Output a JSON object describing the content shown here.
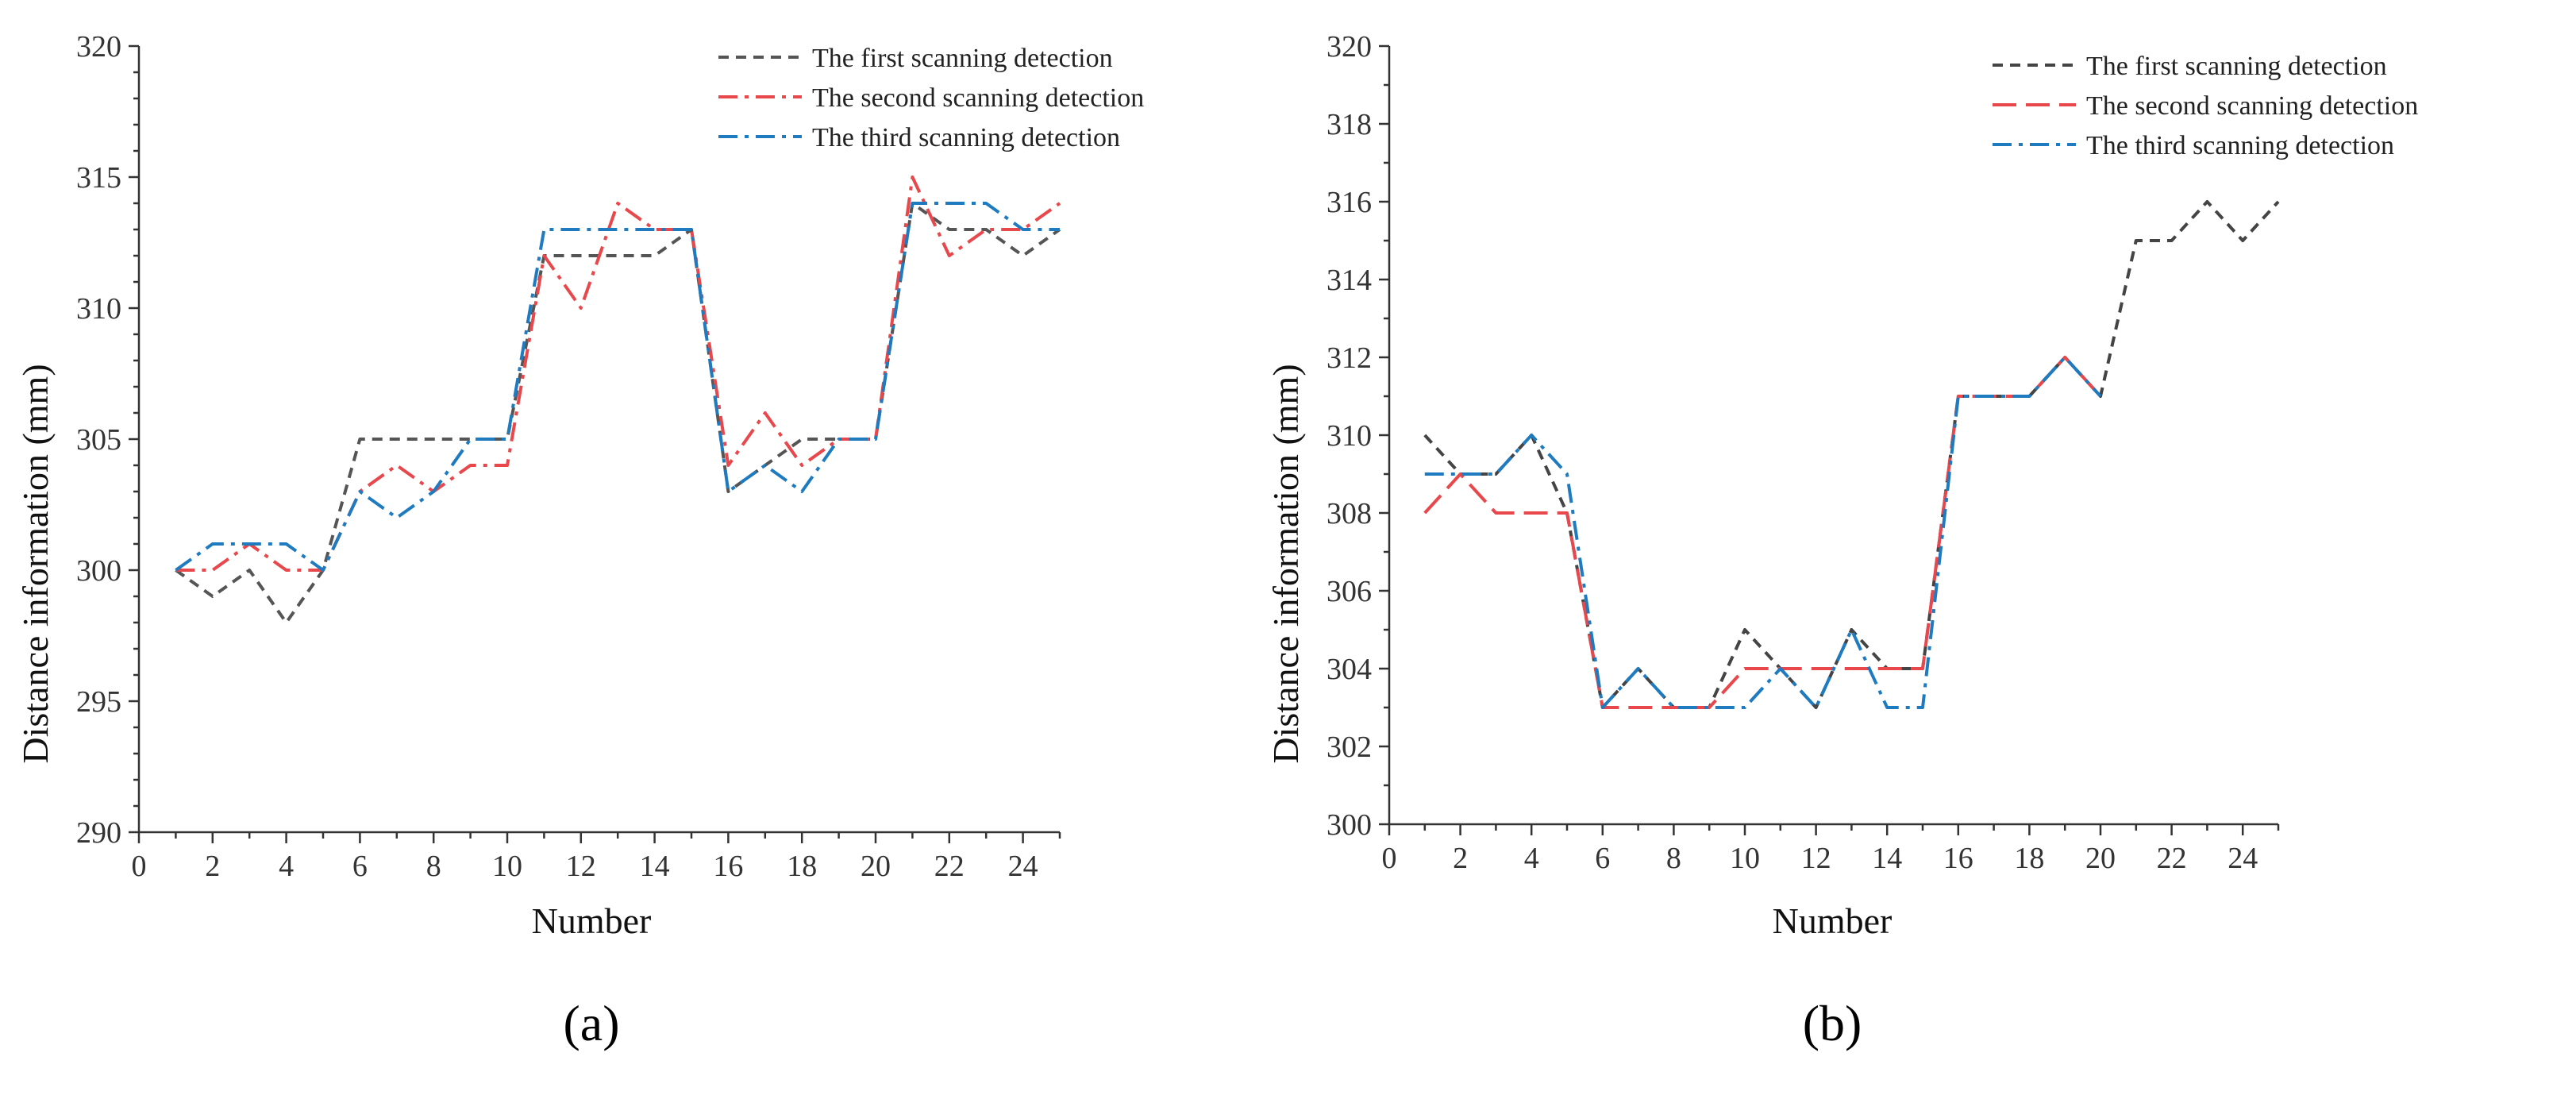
{
  "chart_data": [
    {
      "type": "line",
      "panel_label": "(a)",
      "xlabel": "Number",
      "ylabel": "Distance information (mm)",
      "xlim": [
        0,
        25
      ],
      "ylim": [
        290,
        320
      ],
      "x_ticks": [
        0,
        2,
        4,
        6,
        8,
        10,
        12,
        14,
        16,
        18,
        20,
        22,
        24
      ],
      "y_ticks": [
        290,
        295,
        300,
        305,
        310,
        315,
        320
      ],
      "y_minor_step": 1,
      "legend_position": "top-right",
      "x": [
        1,
        2,
        3,
        4,
        5,
        6,
        7,
        8,
        9,
        10,
        11,
        12,
        13,
        14,
        15,
        16,
        17,
        18,
        19,
        20,
        21,
        22,
        23,
        24,
        25
      ],
      "series": [
        {
          "name": "The first scanning detection",
          "color": "#555555",
          "dash": "dash",
          "values": [
            300,
            299,
            300,
            298,
            300,
            305,
            305,
            305,
            305,
            305,
            312,
            312,
            312,
            312,
            313,
            303,
            304,
            305,
            305,
            305,
            314,
            313,
            313,
            312,
            313
          ]
        },
        {
          "name": "The second scanning detection",
          "color": "#e8474c",
          "dash": "dashdot",
          "values": [
            300,
            300,
            301,
            300,
            300,
            303,
            304,
            303,
            304,
            304,
            312,
            310,
            314,
            313,
            313,
            304,
            306,
            304,
            305,
            305,
            315,
            312,
            313,
            313,
            314
          ]
        },
        {
          "name": "The third scanning detection",
          "color": "#1f7bbf",
          "dash": "dashdot",
          "values": [
            300,
            301,
            301,
            301,
            300,
            303,
            302,
            303,
            305,
            305,
            313,
            313,
            313,
            313,
            313,
            303,
            304,
            303,
            305,
            305,
            314,
            314,
            314,
            313,
            313
          ]
        }
      ]
    },
    {
      "type": "line",
      "panel_label": "(b)",
      "xlabel": "Number",
      "ylabel": "Distance information (mm)",
      "xlim": [
        0,
        25
      ],
      "ylim": [
        300,
        320
      ],
      "x_ticks": [
        0,
        2,
        4,
        6,
        8,
        10,
        12,
        14,
        16,
        18,
        20,
        22,
        24
      ],
      "y_ticks": [
        300,
        302,
        304,
        306,
        308,
        310,
        312,
        314,
        316,
        318,
        320
      ],
      "y_minor_step": 1,
      "legend_position": "top-right",
      "series": [
        {
          "name": "The first scanning detection",
          "color": "#444444",
          "dash": "dash",
          "x": [
            1,
            2,
            3,
            4,
            5,
            6,
            7,
            8,
            9,
            10,
            11,
            12,
            13,
            14,
            15,
            16,
            17,
            18,
            19,
            20,
            21,
            22,
            23,
            24,
            25
          ],
          "values": [
            310,
            309,
            309,
            310,
            308,
            303,
            304,
            303,
            303,
            305,
            304,
            303,
            305,
            304,
            304,
            311,
            311,
            311,
            312,
            311,
            315,
            315,
            316,
            315,
            316
          ]
        },
        {
          "name": "The second scanning detection",
          "color": "#e8474c",
          "dash": "longdash",
          "x": [
            1,
            2,
            3,
            4,
            5,
            6,
            7,
            8,
            9,
            10,
            11,
            12,
            13,
            14,
            15,
            16,
            17,
            18,
            19,
            20
          ],
          "values": [
            308,
            309,
            308,
            308,
            308,
            303,
            303,
            303,
            303,
            304,
            304,
            304,
            304,
            304,
            304,
            311,
            311,
            311,
            312,
            311
          ]
        },
        {
          "name": "The third scanning detection",
          "color": "#1f7bbf",
          "dash": "dashdot",
          "x": [
            1,
            2,
            3,
            4,
            5,
            6,
            7,
            8,
            9,
            10,
            11,
            12,
            13,
            14,
            15,
            16,
            17,
            18,
            19,
            20
          ],
          "values": [
            309,
            309,
            309,
            310,
            309,
            303,
            304,
            303,
            303,
            303,
            304,
            303,
            305,
            303,
            303,
            311,
            311,
            311,
            312,
            311
          ]
        }
      ]
    }
  ]
}
